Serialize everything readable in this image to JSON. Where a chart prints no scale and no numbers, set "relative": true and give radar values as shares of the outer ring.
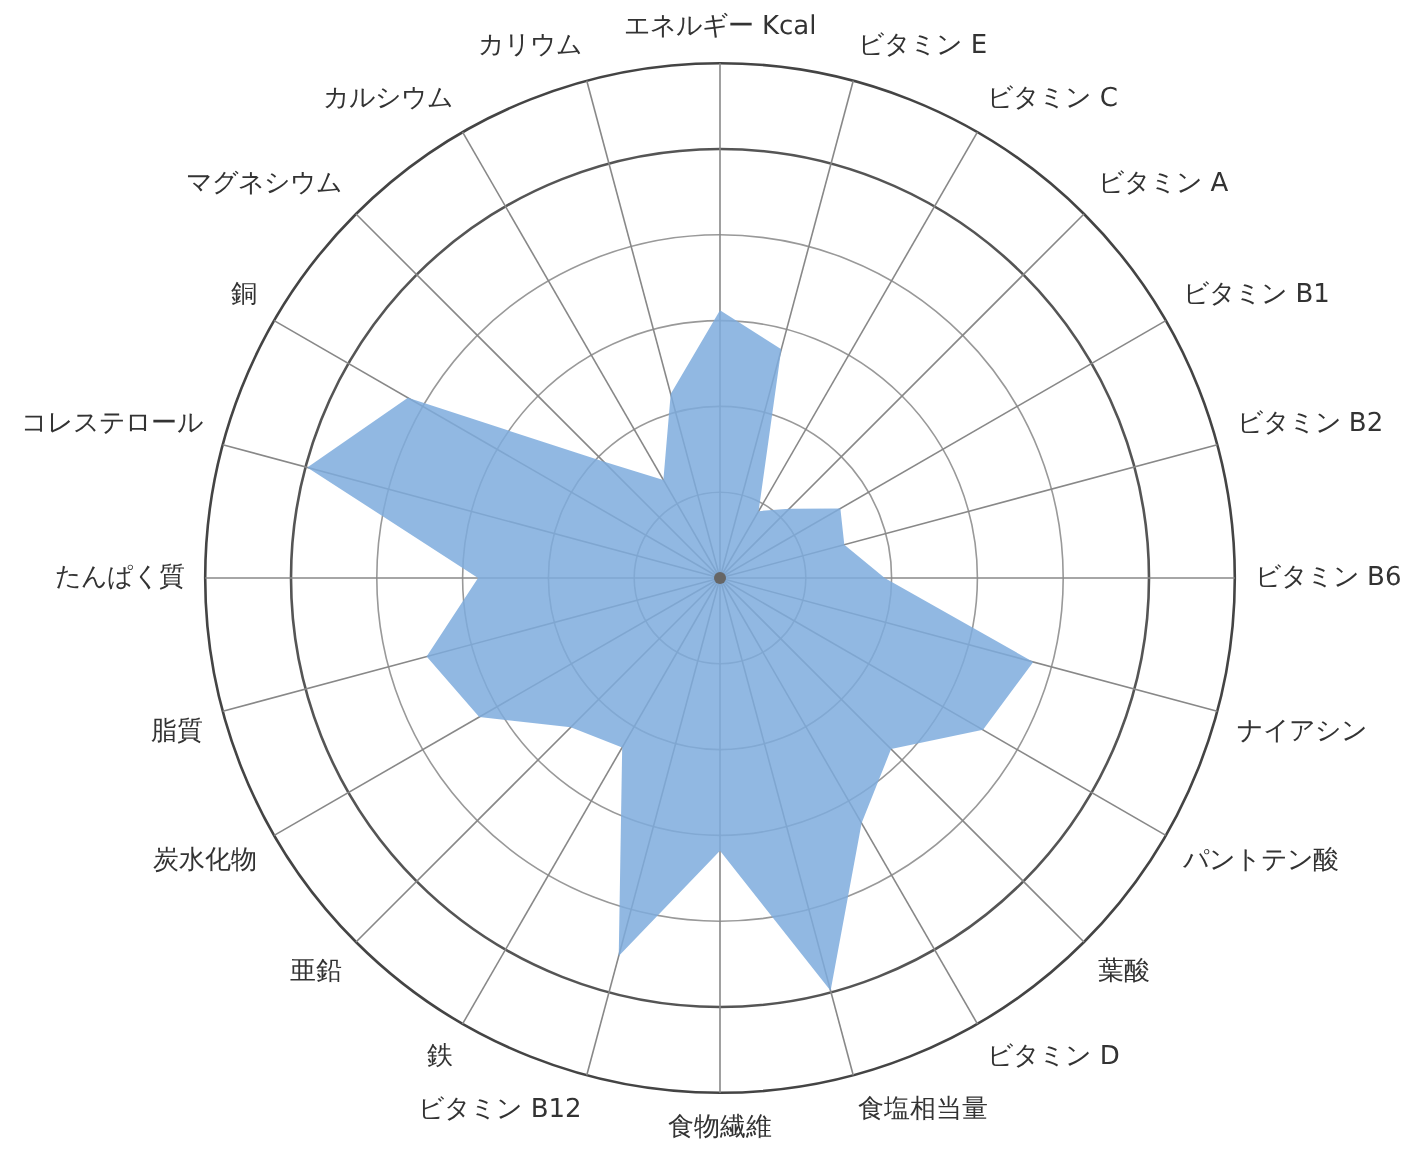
{
  "chart_data": {
    "type": "radar",
    "relative": true,
    "grid": true,
    "marker": "none",
    "categories": [
      "エネルギー Kcal",
      "ビタミン E",
      "ビタミン C",
      "ビタミン A",
      "ビタミン B1",
      "ビタミン B2",
      "ビタミン B6",
      "ナイアシン",
      "パントテン酸",
      "葉酸",
      "ビタミン D",
      "食塩相当量",
      "食物繊維",
      "ビタミン B12",
      "鉄",
      "亜鉛",
      "炭水化物",
      "脂質",
      "たんぱく質",
      "コレステロール",
      "銅",
      "マグネシウム",
      "カルシウム",
      "カリウム"
    ],
    "series": [
      {
        "color": "#7eacdd",
        "values": [
          0.52,
          0.46,
          0.15,
          0.19,
          0.27,
          0.25,
          0.32,
          0.63,
          0.59,
          0.47,
          0.55,
          0.83,
          0.53,
          0.76,
          0.38,
          0.41,
          0.54,
          0.59,
          0.47,
          0.83,
          0.7,
          0.32,
          0.22,
          0.37
        ]
      }
    ]
  }
}
